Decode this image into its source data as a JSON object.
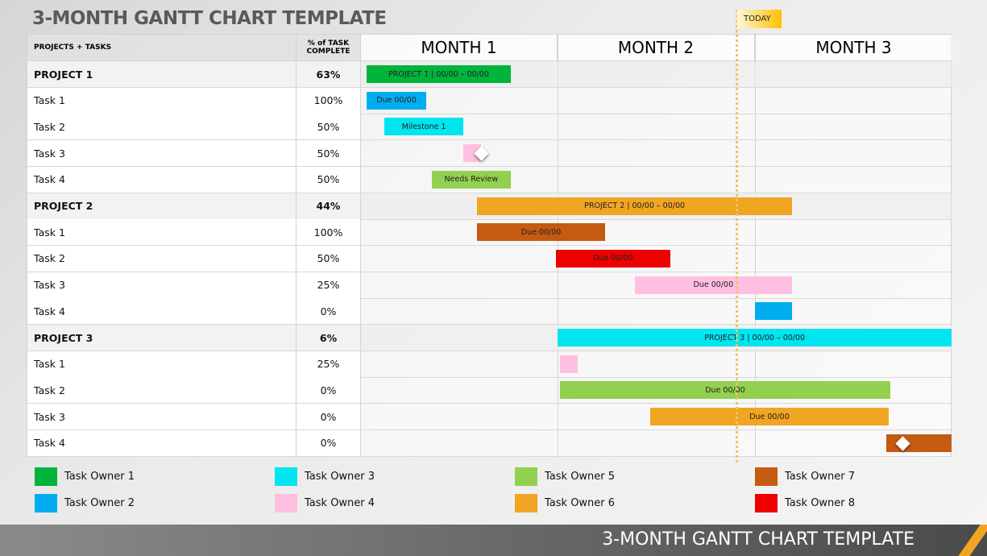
{
  "title": "3-MONTH GANTT CHART TEMPLATE",
  "footer_title": "3-MONTH GANTT CHART TEMPLATE",
  "chart_data": {
    "type": "gantt",
    "title": "3-MONTH GANTT CHART TEMPLATE",
    "columns": {
      "tasks": "PROJECTS + TASKS",
      "pct": "% of TASK COMPLETE"
    },
    "months": [
      "MONTH 1",
      "MONTH 2",
      "MONTH 3"
    ],
    "timeline_range_months": [
      0,
      3
    ],
    "today": {
      "label": "TODAY",
      "month": 1.91,
      "color": "#ffc000"
    },
    "rows": [
      {
        "name": "PROJECT 1",
        "pct": "63%",
        "project": true,
        "start": 0.03,
        "end": 0.76,
        "owner": 1,
        "label": "PROJECT 1  |  00/00 – 00/00"
      },
      {
        "name": "Task 1",
        "pct": "100%",
        "start": 0.03,
        "end": 0.33,
        "owner": 2,
        "label": "Due 00/00"
      },
      {
        "name": "Task 2",
        "pct": "50%",
        "start": 0.12,
        "end": 0.52,
        "owner": 3,
        "label": "Milestone 1"
      },
      {
        "name": "Task 3",
        "pct": "50%",
        "start": 0.52,
        "end": 0.61,
        "owner": 4,
        "label": "",
        "milestone": true
      },
      {
        "name": "Task 4",
        "pct": "50%",
        "start": 0.36,
        "end": 0.76,
        "owner": 5,
        "label": "Needs Review"
      },
      {
        "name": "PROJECT 2",
        "pct": "44%",
        "project": true,
        "start": 0.59,
        "end": 2.19,
        "owner": 6,
        "label": "PROJECT 2  |  00/00 – 00/00"
      },
      {
        "name": "Task 1",
        "pct": "100%",
        "start": 0.59,
        "end": 1.24,
        "owner": 7,
        "label": "Due 00/00"
      },
      {
        "name": "Task 2",
        "pct": "50%",
        "start": 0.99,
        "end": 1.57,
        "owner": 8,
        "label": "Due 00/00"
      },
      {
        "name": "Task 3",
        "pct": "25%",
        "start": 1.39,
        "end": 2.19,
        "owner": 4,
        "label": "Due 00/00"
      },
      {
        "name": "Task 4",
        "pct": "0%",
        "start": 2.0,
        "end": 2.19,
        "owner": 2,
        "label": ""
      },
      {
        "name": "PROJECT 3",
        "pct": "6%",
        "project": true,
        "start": 1.0,
        "end": 3.0,
        "owner": 3,
        "label": "PROJECT 3  |  00/00 – 00/00"
      },
      {
        "name": "Task 1",
        "pct": "25%",
        "start": 1.01,
        "end": 1.1,
        "owner": 4,
        "label": ""
      },
      {
        "name": "Task 2",
        "pct": "0%",
        "start": 1.01,
        "end": 2.69,
        "owner": 5,
        "label": "Due 00/00"
      },
      {
        "name": "Task 3",
        "pct": "0%",
        "start": 1.47,
        "end": 2.68,
        "owner": 6,
        "label": "Due 00/00"
      },
      {
        "name": "Task 4",
        "pct": "0%",
        "start": 2.67,
        "end": 3.0,
        "owner": 7,
        "label": "",
        "milestone": true
      }
    ],
    "legend": [
      {
        "label": "Task Owner 1",
        "color": "#00b43c"
      },
      {
        "label": "Task Owner 2",
        "color": "#00aeef"
      },
      {
        "label": "Task Owner 3",
        "color": "#00e5f0"
      },
      {
        "label": "Task Owner 4",
        "color": "#ffbfe0"
      },
      {
        "label": "Task Owner 5",
        "color": "#92d050"
      },
      {
        "label": "Task Owner 6",
        "color": "#f0a523"
      },
      {
        "label": "Task Owner 7",
        "color": "#c55a11"
      },
      {
        "label": "Task Owner 8",
        "color": "#ee0000"
      }
    ]
  }
}
